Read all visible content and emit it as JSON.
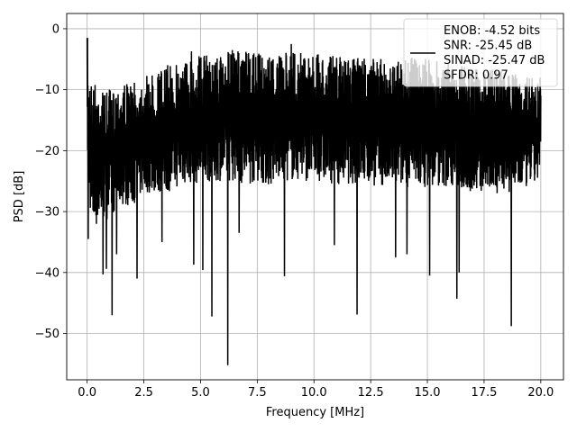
{
  "chart_data": {
    "type": "line",
    "xlabel": "Frequency [MHz]",
    "ylabel": "PSD [dB]",
    "xlim": [
      -0.9,
      21.0
    ],
    "ylim": [
      -57.6,
      2.5
    ],
    "x_ticks": [
      0.0,
      2.5,
      5.0,
      7.5,
      10.0,
      12.5,
      15.0,
      17.5,
      20.0
    ],
    "x_tick_labels": [
      "0.0",
      "2.5",
      "5.0",
      "7.5",
      "10.0",
      "12.5",
      "15.0",
      "17.5",
      "20.0"
    ],
    "y_ticks": [
      0,
      -10,
      -20,
      -30,
      -40,
      -50
    ],
    "y_tick_labels": [
      "0",
      "−10",
      "−20",
      "−30",
      "−40",
      "−50"
    ],
    "grid": true,
    "legend_position": "top-right",
    "series": [
      {
        "name": "ENOB: -4.52 bits\nSNR: -25.45 dB\nSINAD: -25.47 dB\nSFDR: 0.97",
        "color": "#000000",
        "x_start": 0.0,
        "x_end": 20.0,
        "upper_envelope": [
          [
            0.0,
            -1.5
          ],
          [
            0.15,
            -8
          ],
          [
            0.5,
            -9
          ],
          [
            1.0,
            -10
          ],
          [
            1.5,
            -8.5
          ],
          [
            2.0,
            -9
          ],
          [
            2.5,
            -8
          ],
          [
            3.0,
            -7
          ],
          [
            3.5,
            -6
          ],
          [
            4.0,
            -5.5
          ],
          [
            4.5,
            -4.5
          ],
          [
            5.0,
            -4
          ],
          [
            5.5,
            -4.5
          ],
          [
            6.0,
            -4
          ],
          [
            6.5,
            -3.5
          ],
          [
            7.0,
            -4
          ],
          [
            7.5,
            -4
          ],
          [
            8.0,
            -4
          ],
          [
            8.5,
            -4.5
          ],
          [
            9.0,
            -3.5
          ],
          [
            10.0,
            -4
          ],
          [
            11.0,
            -4.5
          ],
          [
            12.0,
            -4.5
          ],
          [
            13.0,
            -5
          ],
          [
            14.0,
            -4.5
          ],
          [
            15.0,
            -5
          ],
          [
            16.0,
            -5.5
          ],
          [
            17.0,
            -6.5
          ],
          [
            18.0,
            -6.5
          ],
          [
            19.0,
            -7.5
          ],
          [
            20.0,
            -8
          ]
        ],
        "lower_envelope": [
          [
            0.0,
            -20
          ],
          [
            0.2,
            -34
          ],
          [
            0.5,
            -32
          ],
          [
            1.0,
            -31
          ],
          [
            1.5,
            -29
          ],
          [
            2.0,
            -29
          ],
          [
            2.5,
            -27
          ],
          [
            3.0,
            -27
          ],
          [
            3.5,
            -27
          ],
          [
            4.0,
            -26
          ],
          [
            4.5,
            -25.5
          ],
          [
            5.0,
            -25.5
          ],
          [
            5.5,
            -25
          ],
          [
            6.0,
            -25
          ],
          [
            6.5,
            -25
          ],
          [
            7.0,
            -26
          ],
          [
            7.5,
            -25
          ],
          [
            8.0,
            -26
          ],
          [
            8.5,
            -25
          ],
          [
            9.0,
            -25
          ],
          [
            10.0,
            -25
          ],
          [
            11.0,
            -25.5
          ],
          [
            12.0,
            -25.5
          ],
          [
            13.0,
            -26
          ],
          [
            14.0,
            -26
          ],
          [
            15.0,
            -26
          ],
          [
            16.0,
            -26
          ],
          [
            17.0,
            -27
          ],
          [
            18.0,
            -27
          ],
          [
            19.0,
            -27
          ],
          [
            20.0,
            -25
          ]
        ],
        "peaks": [
          [
            0.02,
            -1.5
          ],
          [
            4.6,
            -3.7
          ],
          [
            5.5,
            -0.2
          ],
          [
            6.4,
            -3.5
          ],
          [
            7.0,
            -3.8
          ],
          [
            9.0,
            -2.5
          ]
        ],
        "dips": [
          [
            0.05,
            -34.5
          ],
          [
            0.7,
            -40.3
          ],
          [
            0.85,
            -39.4
          ],
          [
            1.1,
            -47
          ],
          [
            1.3,
            -37
          ],
          [
            2.2,
            -41
          ],
          [
            3.3,
            -35
          ],
          [
            4.7,
            -38.7
          ],
          [
            5.1,
            -39.6
          ],
          [
            5.5,
            -47.2
          ],
          [
            6.2,
            -55.2
          ],
          [
            6.7,
            -33.5
          ],
          [
            8.7,
            -40.6
          ],
          [
            10.9,
            -35.5
          ],
          [
            11.9,
            -46.9
          ],
          [
            13.6,
            -37.5
          ],
          [
            14.1,
            -37
          ],
          [
            15.1,
            -40.5
          ],
          [
            16.3,
            -44.3
          ],
          [
            16.4,
            -40
          ],
          [
            18.7,
            -48.8
          ]
        ]
      }
    ]
  }
}
